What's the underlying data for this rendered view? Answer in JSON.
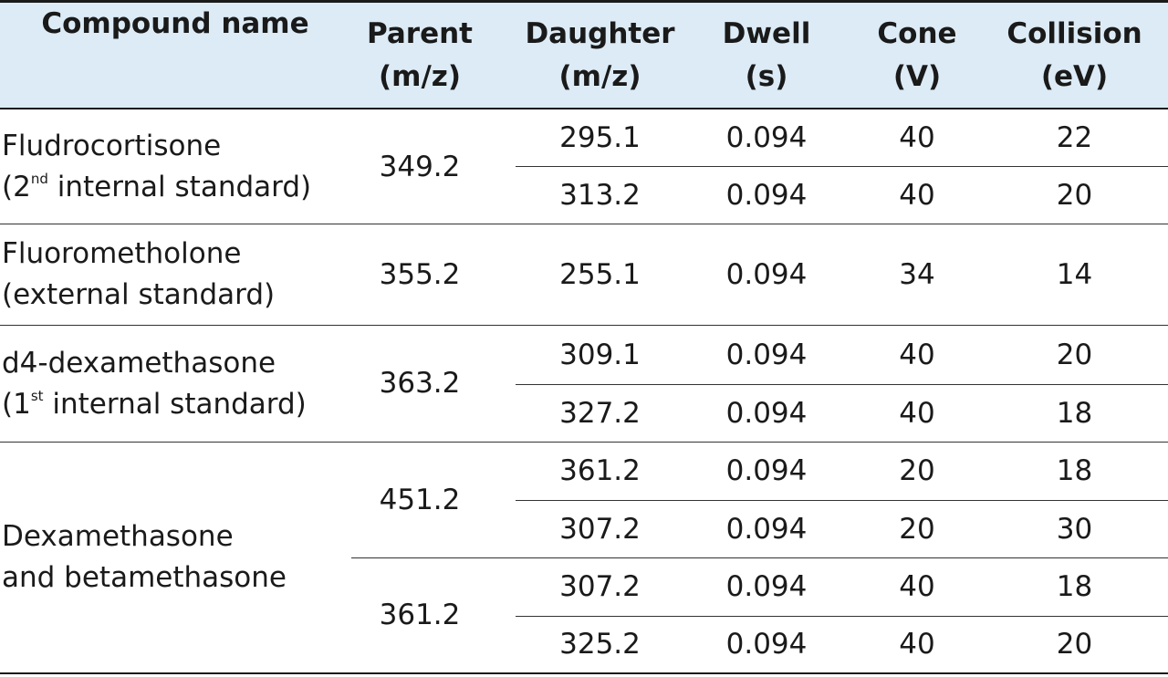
{
  "headers": {
    "compound": [
      "Compound name"
    ],
    "parent": [
      "Parent",
      "(m/z)"
    ],
    "daughter": [
      "Daughter",
      "(m/z)"
    ],
    "dwell": [
      "Dwell",
      "(s)"
    ],
    "cone": [
      "Cone",
      "(V)"
    ],
    "collision": [
      "Collision",
      "(eV)"
    ]
  },
  "compounds": [
    {
      "line1": "Fludrocortisone",
      "line2_pre": "(2",
      "line2_sup": "nd",
      "line2_post": " internal standard)"
    },
    {
      "line1": "Fluorometholone",
      "line2_pre": "(external standard)",
      "line2_sup": "",
      "line2_post": ""
    },
    {
      "line1": "d4-dexamethasone",
      "line2_pre": "(1",
      "line2_sup": "st",
      "line2_post": " internal standard)"
    },
    {
      "line1": "Dexamethasone",
      "line2_pre": "and betamethasone",
      "line2_sup": "",
      "line2_post": ""
    }
  ],
  "parents": [
    "349.2",
    "355.2",
    "363.2",
    "451.2",
    "361.2"
  ],
  "rows": [
    {
      "daughter": "295.1",
      "dwell": "0.094",
      "cone": "40",
      "collision": "22"
    },
    {
      "daughter": "313.2",
      "dwell": "0.094",
      "cone": "40",
      "collision": "20"
    },
    {
      "daughter": "255.1",
      "dwell": "0.094",
      "cone": "34",
      "collision": "14"
    },
    {
      "daughter": "309.1",
      "dwell": "0.094",
      "cone": "40",
      "collision": "20"
    },
    {
      "daughter": "327.2",
      "dwell": "0.094",
      "cone": "40",
      "collision": "18"
    },
    {
      "daughter": "361.2",
      "dwell": "0.094",
      "cone": "20",
      "collision": "18"
    },
    {
      "daughter": "307.2",
      "dwell": "0.094",
      "cone": "20",
      "collision": "30"
    },
    {
      "daughter": "307.2",
      "dwell": "0.094",
      "cone": "40",
      "collision": "18"
    },
    {
      "daughter": "325.2",
      "dwell": "0.094",
      "cone": "40",
      "collision": "20"
    }
  ]
}
